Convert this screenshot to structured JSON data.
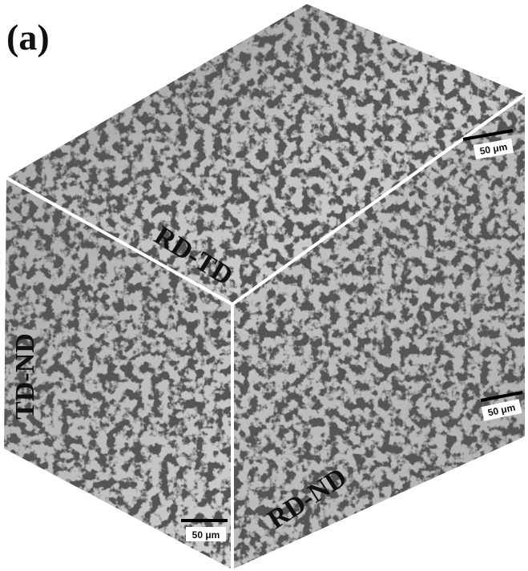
{
  "panel_label": "(a)",
  "faces": [
    {
      "label": "RD-TD",
      "scale_bar": "50 μm"
    },
    {
      "label": "TD-ND",
      "scale_bar": "50 μm"
    },
    {
      "label": "RD-ND",
      "scale_bar": "50 μm"
    }
  ]
}
